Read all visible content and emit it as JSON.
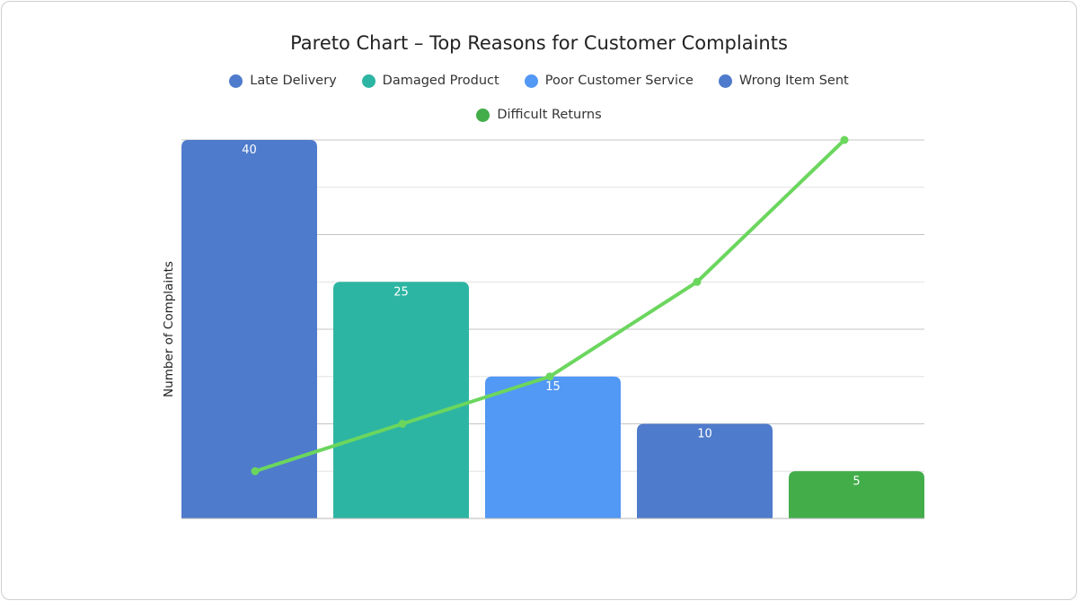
{
  "chart_data": {
    "type": "bar",
    "title": "Pareto Chart – Top Reasons for Customer Complaints",
    "ylabel": "Number of Complaints",
    "xlabel": "",
    "categories": [
      "Late Delivery",
      "Damaged Product",
      "Poor Customer Service",
      "Wrong Item Sent",
      "Difficult Returns"
    ],
    "values": [
      40,
      25,
      15,
      10,
      5
    ],
    "data_labels": [
      "40",
      "25",
      "15",
      "10",
      "5"
    ],
    "colors": [
      "#4f7bcc",
      "#2db5a3",
      "#5298f5",
      "#4f7bcc",
      "#43ad4a"
    ],
    "line": {
      "type": "line",
      "color": "#6bd65e",
      "values": [
        5,
        10,
        15,
        25,
        40
      ]
    },
    "ylim": [
      0,
      40
    ],
    "grid_step": 5,
    "grid": true,
    "legend_position": "top"
  }
}
